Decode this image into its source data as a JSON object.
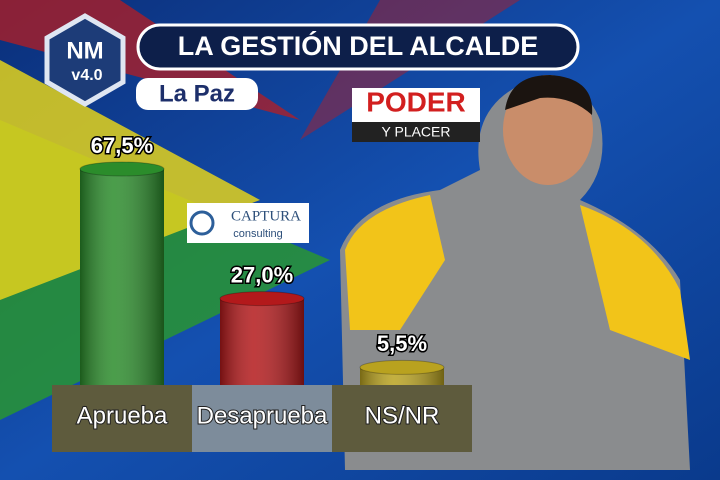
{
  "chart_data": {
    "type": "bar",
    "title": "LA GESTIÓN DEL ALCALDE",
    "subtitle": "La Paz",
    "categories": [
      "Aprueba",
      "Desaprueba",
      "NS/NR"
    ],
    "values": [
      67.5,
      27.0,
      5.5
    ],
    "value_labels": [
      "67,5%",
      "27,0%",
      "5,5%"
    ],
    "colors": [
      "#2b8c2b",
      "#b3191b",
      "#b9a21f"
    ]
  },
  "logos": {
    "nm": "NM",
    "version": "v4.0",
    "brand_line1": "PODER",
    "brand_line2": "Y PLACER",
    "pollster": "CAPTURA",
    "pollster_sub": "consulting"
  }
}
